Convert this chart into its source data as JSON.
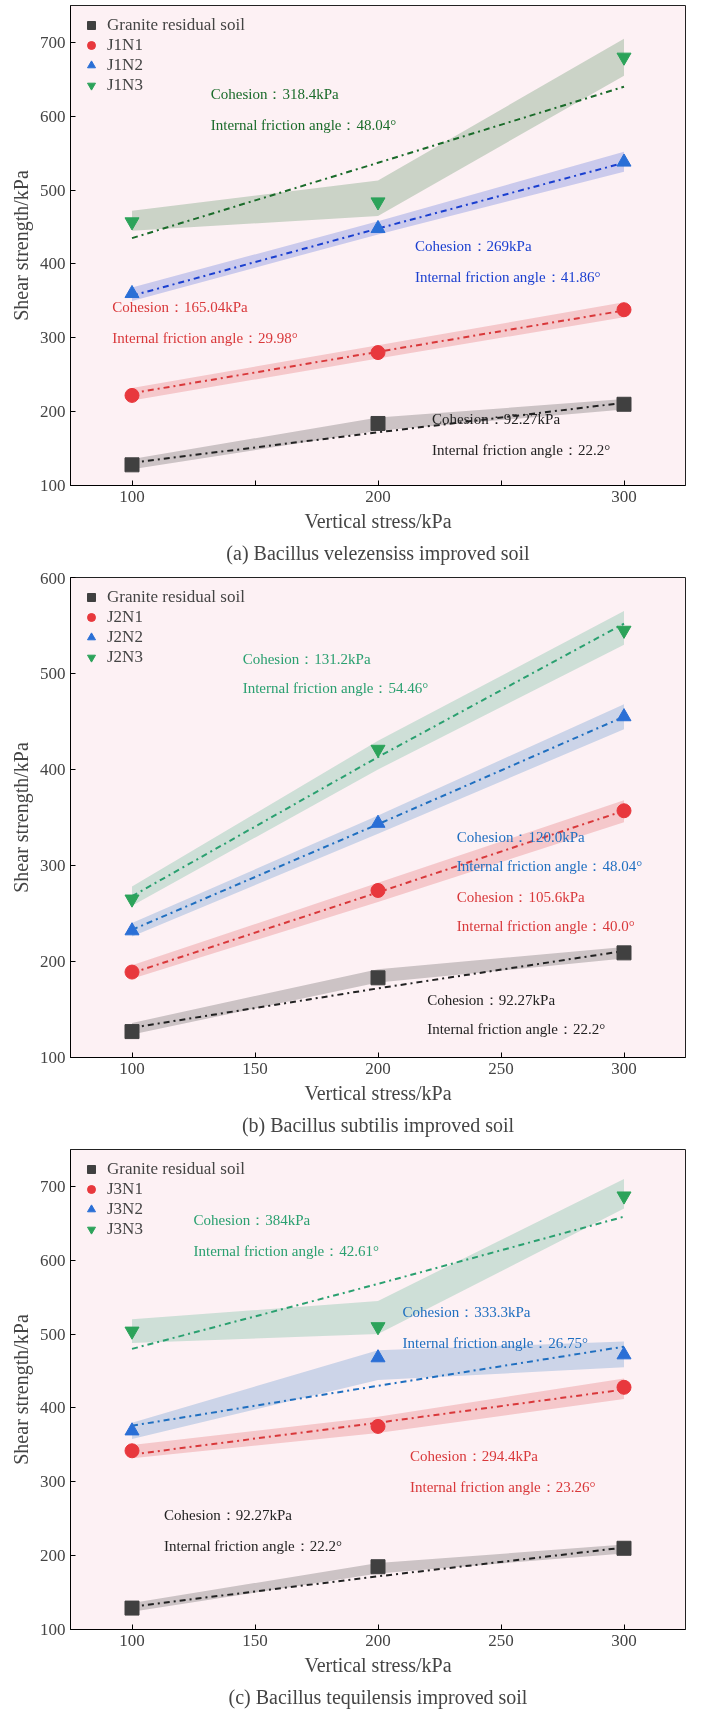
{
  "chart_data": [
    {
      "type": "scatter",
      "title": "(a) Bacillus velezensiss improved soil",
      "xlabel": "Vertical stress/kPa",
      "ylabel": "Shear strength/kPa",
      "xlim": [
        75,
        325
      ],
      "xticks": [
        100,
        {
          "value": 150,
          "label": null
        },
        200,
        {
          "value": 250,
          "label": null
        },
        300
      ],
      "ylim": [
        100,
        750
      ],
      "yticks": [
        100,
        200,
        300,
        400,
        500,
        600,
        700
      ],
      "grid": false,
      "legend": "top left",
      "series": [
        {
          "name": "Granite residual soil",
          "color": "#404040",
          "marker": "square",
          "x": [
            100,
            200,
            300
          ],
          "values": [
            128,
            184,
            210
          ]
        },
        {
          "name": "J1N1",
          "color": "#e8383d",
          "marker": "circle",
          "x": [
            100,
            200,
            300
          ],
          "values": [
            222,
            280,
            338
          ]
        },
        {
          "name": "J1N2",
          "color": "#2a6fd6",
          "marker": "triangle",
          "x": [
            100,
            200,
            300
          ],
          "values": [
            360,
            448,
            538
          ]
        },
        {
          "name": "J1N3",
          "color": "#2ca35a",
          "x": [
            100,
            200,
            300
          ],
          "values": [
            457,
            484,
            680
          ]
        },
        {
          "type": "line",
          "color": "#222222",
          "line_style": "dashed",
          "x": [
            100,
            200,
            300
          ],
          "values": [
            131,
            172,
            212
          ],
          "lower": [
            122,
            174,
            203
          ],
          "upper": [
            136,
            192,
            217
          ]
        },
        {
          "type": "line",
          "color": "#d9383a",
          "line_style": "dashed",
          "x": [
            100,
            200,
            300
          ],
          "values": [
            225,
            281,
            337
          ],
          "lower": [
            215,
            272,
            328
          ],
          "upper": [
            232,
            290,
            348
          ]
        },
        {
          "type": "line",
          "color": "#1a3fd0",
          "line_style": "dashed",
          "x": [
            100,
            200,
            300
          ],
          "values": [
            357,
            448,
            537
          ],
          "lower": [
            350,
            440,
            525
          ],
          "upper": [
            368,
            458,
            552
          ]
        },
        {
          "type": "line",
          "color": "#1a6b2a",
          "line_style": "dashed",
          "x": [
            100,
            200,
            300
          ],
          "values": [
            435,
            537,
            640
          ],
          "lower": [
            445,
            465,
            655
          ],
          "upper": [
            472,
            513,
            705
          ]
        }
      ],
      "annotations": [
        "Cohesion：92.27kPa",
        "Internal friction angle：22.2°",
        "Cohesion：165.04kPa",
        "Internal friction angle：29.98°",
        "Cohesion：269kPa",
        "Internal friction angle：41.86°",
        "Cohesion：318.4kPa",
        "Internal friction angle：48.04°"
      ]
    },
    {
      "type": "scatter",
      "title": "(b) Bacillus subtilis improved soil",
      "xlabel": "Vertical stress/kPa",
      "ylabel": "Shear strength/kPa",
      "xlim": [
        75,
        325
      ],
      "xticks": [
        100,
        150,
        200,
        250,
        300
      ],
      "ylim": [
        100,
        600
      ],
      "yticks": [
        100,
        200,
        300,
        400,
        500,
        600
      ],
      "grid": false,
      "legend": "top left",
      "series": [
        {
          "name": "Granite residual soil",
          "color": "#404040",
          "marker": "square",
          "x": [
            100,
            200,
            300
          ],
          "values": [
            127,
            183,
            209
          ]
        },
        {
          "name": "J2N1",
          "color": "#e8383d",
          "marker": "circle",
          "x": [
            100,
            200,
            300
          ],
          "values": [
            189,
            274,
            357
          ]
        },
        {
          "name": "J2N2",
          "color": "#2a6fd6",
          "marker": "triangle",
          "x": [
            100,
            200,
            300
          ],
          "values": [
            232,
            344,
            455
          ]
        },
        {
          "name": "J2N3",
          "color": "#2ca35a",
          "x": [
            100,
            200,
            300
          ],
          "values": [
            265,
            421,
            545
          ]
        },
        {
          "type": "line",
          "color": "#222222",
          "line_style": "dashed",
          "x": [
            100,
            200,
            300
          ],
          "values": [
            131,
            172,
            211
          ],
          "lower": [
            124,
            178,
            203
          ],
          "upper": [
            136,
            192,
            215
          ]
        },
        {
          "type": "line",
          "color": "#d9383a",
          "line_style": "dashed",
          "x": [
            100,
            200,
            300
          ],
          "values": [
            188,
            272,
            357
          ],
          "lower": [
            182,
            262,
            345
          ],
          "upper": [
            196,
            282,
            368
          ]
        },
        {
          "type": "line",
          "color": "#1f6fc0",
          "line_style": "dashed",
          "x": [
            100,
            200,
            300
          ],
          "values": [
            233,
            343,
            455
          ],
          "lower": [
            226,
            333,
            442
          ],
          "upper": [
            240,
            352,
            468
          ]
        },
        {
          "type": "line",
          "color": "#2aa070",
          "line_style": "dashed",
          "x": [
            100,
            200,
            300
          ],
          "values": [
            268,
            413,
            552
          ],
          "lower": [
            258,
            400,
            530
          ],
          "upper": [
            278,
            430,
            565
          ]
        }
      ],
      "annotations": [
        "Cohesion：92.27kPa",
        "Internal friction angle：22.2°",
        "Cohesion：105.6kPa",
        "Internal friction angle：40.0°",
        "Cohesion：120.0kPa",
        "Internal friction angle：48.04°",
        "Cohesion：131.2kPa",
        "Internal friction angle：54.46°"
      ]
    },
    {
      "type": "scatter",
      "title": "(c) Bacillus tequilensis improved soil",
      "xlabel": "Vertical stress/kPa",
      "ylabel": "Shear strength/kPa",
      "xlim": [
        75,
        325
      ],
      "xticks": [
        100,
        150,
        200,
        250,
        300
      ],
      "ylim": [
        100,
        750
      ],
      "yticks": [
        100,
        200,
        300,
        400,
        500,
        600,
        700
      ],
      "grid": false,
      "legend": "top left",
      "series": [
        {
          "name": "Granite residual soil",
          "color": "#404040",
          "marker": "square",
          "x": [
            100,
            200,
            300
          ],
          "values": [
            129,
            185,
            210
          ]
        },
        {
          "name": "J3N1",
          "color": "#e8383d",
          "marker": "circle",
          "x": [
            100,
            200,
            300
          ],
          "values": [
            342,
            375,
            428
          ]
        },
        {
          "name": "J3N2",
          "color": "#2a6fd6",
          "marker": "triangle",
          "x": [
            100,
            200,
            300
          ],
          "values": [
            369,
            468,
            472
          ]
        },
        {
          "name": "J3N3",
          "color": "#2ca35a",
          "x": [
            100,
            200,
            300
          ],
          "values": [
            504,
            510,
            687
          ]
        },
        {
          "type": "line",
          "color": "#222222",
          "line_style": "dashed",
          "x": [
            100,
            200,
            300
          ],
          "values": [
            131,
            172,
            211
          ],
          "lower": [
            124,
            176,
            203
          ],
          "upper": [
            136,
            190,
            215
          ]
        },
        {
          "type": "line",
          "color": "#d9383a",
          "line_style": "dashed",
          "x": [
            100,
            200,
            300
          ],
          "values": [
            337,
            380,
            425
          ],
          "lower": [
            332,
            366,
            412
          ],
          "upper": [
            350,
            388,
            440
          ]
        },
        {
          "type": "line",
          "color": "#1f6fc0",
          "line_style": "dashed",
          "x": [
            100,
            200,
            300
          ],
          "values": [
            376,
            430,
            483
          ],
          "lower": [
            358,
            438,
            455
          ],
          "upper": [
            380,
            478,
            490
          ]
        },
        {
          "type": "line",
          "color": "#2aa070",
          "line_style": "dashed",
          "x": [
            100,
            200,
            300
          ],
          "values": [
            480,
            568,
            659
          ],
          "lower": [
            488,
            500,
            670
          ],
          "upper": [
            520,
            545,
            710
          ]
        }
      ],
      "annotations": [
        "Cohesion：92.27kPa",
        "Internal friction angle：22.2°",
        "Cohesion：294.4kPa",
        "Internal friction angle：23.26°",
        "Cohesion：333.3kPa",
        "Internal friction angle：26.75°",
        "Cohesion：384kPa",
        "Internal friction angle：42.61°"
      ]
    }
  ]
}
